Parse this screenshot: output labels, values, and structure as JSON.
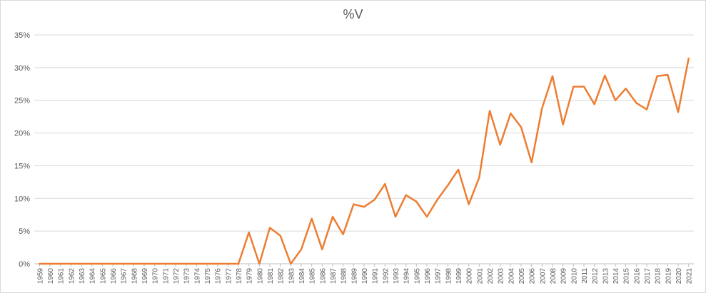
{
  "chart_data": {
    "type": "line",
    "title": "%V",
    "xlabel": "",
    "ylabel": "",
    "ylim": [
      0,
      35
    ],
    "yticks": [
      "0%",
      "5%",
      "10%",
      "15%",
      "20%",
      "25%",
      "30%",
      "35%"
    ],
    "grid": "horizontal",
    "legend": "none",
    "x": [
      "1959",
      "1960",
      "1961",
      "1962",
      "1963",
      "1964",
      "1965",
      "1966",
      "1967",
      "1968",
      "1969",
      "1970",
      "1971",
      "1972",
      "1973",
      "1974",
      "1975",
      "1976",
      "1977",
      "1978",
      "1979",
      "1980",
      "1981",
      "1982",
      "1983",
      "1984",
      "1985",
      "1986",
      "1987",
      "1988",
      "1989",
      "1990",
      "1991",
      "1992",
      "1993",
      "1994",
      "1995",
      "1996",
      "1997",
      "1998",
      "1999",
      "2000",
      "2001",
      "2002",
      "2003",
      "2004",
      "2005",
      "2006",
      "2007",
      "2008",
      "2009",
      "2010",
      "2011",
      "2012",
      "2013",
      "2014",
      "2015",
      "2016",
      "2017",
      "2018",
      "2019",
      "2020",
      "2021"
    ],
    "series": [
      {
        "color": "#ed7d31",
        "values": [
          0,
          0,
          0,
          0,
          0,
          0,
          0,
          0,
          0,
          0,
          0,
          0,
          0,
          0,
          0,
          0,
          0,
          0,
          0,
          0,
          4.8,
          0,
          5.5,
          4.3,
          0,
          2.2,
          6.9,
          2.2,
          7.2,
          4.5,
          9.1,
          8.7,
          9.8,
          12.2,
          7.2,
          10.5,
          9.5,
          7.2,
          9.8,
          12.0,
          14.4,
          9.1,
          13.2,
          23.4,
          18.2,
          23.0,
          20.9,
          15.5,
          23.8,
          28.7,
          21.3,
          27.1,
          27.1,
          24.4,
          28.8,
          25.0,
          26.8,
          24.6,
          23.6,
          28.7,
          28.9,
          23.2,
          31.4
        ]
      }
    ]
  }
}
